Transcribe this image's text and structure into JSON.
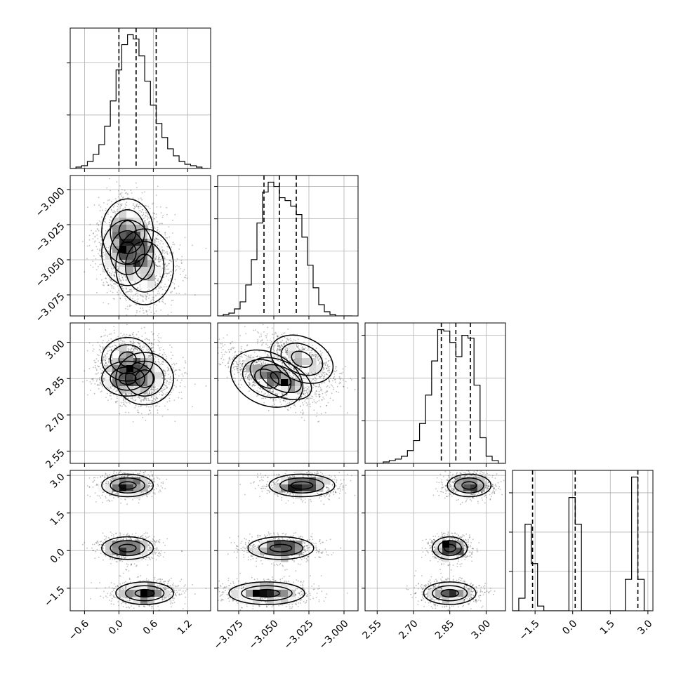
{
  "chart_data": {
    "type": "corner",
    "quantiles": [
      0.16,
      0.5,
      0.84
    ],
    "colors": {
      "ink": "#000000",
      "grid": "#b0b0b0",
      "frame": "#000000",
      "points": "#000000"
    },
    "grid": true,
    "parameters": [
      {
        "range": [
          -0.85,
          1.6
        ],
        "ticks": [
          -0.6,
          0.0,
          0.6,
          1.2
        ],
        "tick_labels": [
          "−0.6",
          "0.0",
          "0.6",
          "1.2"
        ],
        "quantile_values": [
          0.0,
          0.3,
          0.65
        ],
        "hist_edges": [
          -0.85,
          -0.75,
          -0.65,
          -0.55,
          -0.45,
          -0.35,
          -0.25,
          -0.15,
          -0.05,
          0.05,
          0.15,
          0.25,
          0.35,
          0.45,
          0.55,
          0.65,
          0.75,
          0.85,
          0.95,
          1.05,
          1.15,
          1.25,
          1.35,
          1.45,
          1.55
        ],
        "hist_counts": [
          0,
          1,
          2,
          5,
          10,
          17,
          30,
          48,
          70,
          88,
          95,
          92,
          80,
          62,
          45,
          32,
          22,
          14,
          9,
          5,
          3,
          2,
          1,
          0
        ],
        "hist_yticks": [
          38,
          75
        ]
      },
      {
        "range": [
          -3.09,
          -2.99
        ],
        "ticks": [
          -3.075,
          -3.05,
          -3.025,
          -3.0
        ],
        "tick_labels": [
          "−3.075",
          "−3.050",
          "−3.025",
          "−3.000"
        ],
        "quantile_values": [
          -3.057,
          -3.046,
          -3.034
        ],
        "hist_edges": [
          -3.09,
          -3.086,
          -3.082,
          -3.078,
          -3.074,
          -3.07,
          -3.066,
          -3.062,
          -3.058,
          -3.054,
          -3.05,
          -3.046,
          -3.042,
          -3.038,
          -3.034,
          -3.03,
          -3.026,
          -3.022,
          -3.018,
          -3.014,
          -3.01,
          -3.006,
          -3.002,
          -2.998,
          -2.994
        ],
        "hist_counts": [
          0,
          1,
          2,
          5,
          10,
          22,
          40,
          66,
          88,
          95,
          92,
          84,
          82,
          78,
          72,
          56,
          36,
          20,
          8,
          3,
          1,
          0,
          0,
          0
        ],
        "hist_yticks": [
          23,
          46,
          69,
          92
        ]
      },
      {
        "range": [
          2.5,
          3.08
        ],
        "ticks": [
          2.55,
          2.7,
          2.85,
          3.0
        ],
        "tick_labels": [
          "2.55",
          "2.70",
          "2.85",
          "3.00"
        ],
        "quantile_values": [
          2.815,
          2.875,
          2.935
        ],
        "hist_edges": [
          2.5,
          2.525,
          2.55,
          2.575,
          2.6,
          2.625,
          2.65,
          2.675,
          2.7,
          2.725,
          2.75,
          2.775,
          2.8,
          2.825,
          2.85,
          2.875,
          2.9,
          2.925,
          2.95,
          2.975,
          3.0,
          3.025,
          3.05,
          3.075
        ],
        "hist_counts": [
          0,
          0,
          0,
          1,
          2,
          3,
          5,
          9,
          16,
          28,
          48,
          72,
          94,
          93,
          85,
          75,
          90,
          88,
          55,
          18,
          5,
          2,
          0
        ],
        "hist_yticks": [
          30,
          60,
          90
        ]
      },
      {
        "range": [
          -2.4,
          3.2
        ],
        "ticks": [
          -1.5,
          0.0,
          1.5,
          3.0
        ],
        "tick_labels": [
          "−1.5",
          "0.0",
          "1.5",
          "3.0"
        ],
        "quantile_values": [
          -1.6,
          0.1,
          2.6
        ],
        "hist_edges": [
          -2.4,
          -2.15,
          -1.9,
          -1.65,
          -1.4,
          -1.15,
          -0.9,
          -0.65,
          -0.4,
          -0.15,
          0.1,
          0.35,
          0.6,
          0.85,
          1.1,
          1.35,
          1.6,
          1.85,
          2.1,
          2.35,
          2.6,
          2.85,
          3.1
        ],
        "hist_counts": [
          0,
          8,
          55,
          30,
          3,
          0,
          0,
          0,
          0,
          72,
          55,
          0,
          0,
          0,
          0,
          0,
          0,
          0,
          20,
          85,
          20,
          0
        ],
        "hist_yticks": [
          25,
          50,
          75
        ]
      }
    ],
    "clusters": [
      {
        "mean": [
          0.15,
          -3.03,
          2.93,
          2.6
        ],
        "sd": [
          0.25,
          0.013,
          0.05,
          0.25
        ],
        "weight": 0.33
      },
      {
        "mean": [
          0.15,
          -3.045,
          2.85,
          0.1
        ],
        "sd": [
          0.25,
          0.013,
          0.04,
          0.25
        ],
        "weight": 0.33
      },
      {
        "mean": [
          0.45,
          -3.055,
          2.85,
          -1.7
        ],
        "sd": [
          0.28,
          0.015,
          0.06,
          0.25
        ],
        "weight": 0.34
      }
    ]
  }
}
